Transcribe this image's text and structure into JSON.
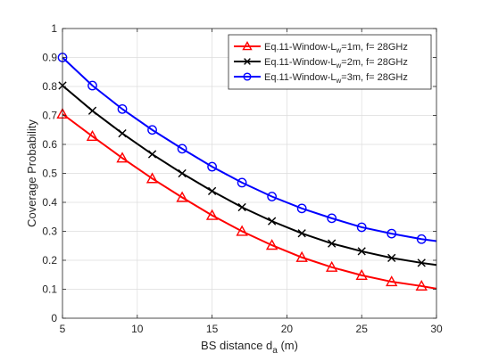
{
  "chart_data": {
    "type": "line",
    "xlabel": "BS distance d",
    "xlabel_sub": "a",
    "xlabel_unit": " (m)",
    "ylabel": "Coverage Probability",
    "xlim": [
      5,
      30
    ],
    "ylim": [
      0,
      1
    ],
    "xticks": [
      5,
      10,
      15,
      20,
      25,
      30
    ],
    "yticks": [
      0,
      0.1,
      0.2,
      0.3,
      0.4,
      0.5,
      0.6,
      0.7,
      0.8,
      0.9,
      1
    ],
    "ytick_labels": [
      "0",
      "0.1",
      "0.2",
      "0.3",
      "0.4",
      "0.5",
      "0.6",
      "0.7",
      "0.8",
      "0.9",
      "1"
    ],
    "grid": true,
    "legend_position": "top-right",
    "series": [
      {
        "name_prefix": "Eq.11-Window-L",
        "name_sub": "w",
        "name_suffix": "=1m, f= 28GHz",
        "color": "#ff0000",
        "marker": "triangle",
        "x": [
          5,
          7,
          9,
          11,
          13,
          15,
          17,
          19,
          21,
          23,
          25,
          27,
          29,
          30
        ],
        "marker_x": [
          5,
          7,
          9,
          11,
          13,
          15,
          17,
          19,
          21,
          23,
          25,
          27,
          29
        ],
        "values": [
          0.705,
          0.628,
          0.553,
          0.482,
          0.417,
          0.355,
          0.3,
          0.252,
          0.21,
          0.176,
          0.148,
          0.126,
          0.111,
          0.102
        ]
      },
      {
        "name_prefix": "Eq.11-Window-L",
        "name_sub": "w",
        "name_suffix": "=2m, f= 28GHz",
        "color": "#000000",
        "marker": "x",
        "x": [
          5,
          7,
          9,
          11,
          13,
          15,
          17,
          19,
          21,
          23,
          25,
          27,
          29,
          30
        ],
        "marker_x": [
          5,
          7,
          9,
          11,
          13,
          15,
          17,
          19,
          21,
          23,
          25,
          27,
          29
        ],
        "values": [
          0.803,
          0.716,
          0.638,
          0.566,
          0.5,
          0.439,
          0.383,
          0.335,
          0.293,
          0.258,
          0.231,
          0.208,
          0.191,
          0.184
        ]
      },
      {
        "name_prefix": "Eq.11-Window-L",
        "name_sub": "w",
        "name_suffix": "=3m, f= 28GHz",
        "color": "#0000ff",
        "marker": "circle",
        "x": [
          5,
          7,
          9,
          11,
          13,
          15,
          17,
          19,
          21,
          23,
          25,
          27,
          29,
          30
        ],
        "marker_x": [
          5,
          7,
          9,
          11,
          13,
          15,
          17,
          19,
          21,
          23,
          25,
          27,
          29
        ],
        "values": [
          0.9,
          0.803,
          0.722,
          0.65,
          0.585,
          0.523,
          0.468,
          0.42,
          0.379,
          0.345,
          0.314,
          0.292,
          0.273,
          0.266
        ]
      }
    ]
  }
}
